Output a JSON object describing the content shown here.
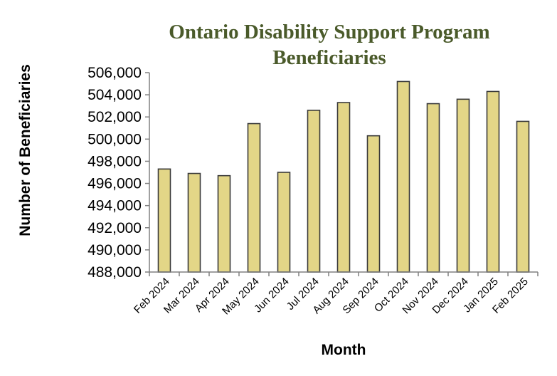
{
  "chart_data": {
    "type": "bar",
    "title_lines": [
      "Ontario Disability Support Program",
      "Beneficiaries"
    ],
    "xlabel": "Month",
    "ylabel": "Number of Beneficiaries",
    "ylim": [
      488000,
      506000
    ],
    "y_ticks": [
      "488,000",
      "490,000",
      "492,000",
      "494,000",
      "496,000",
      "498,000",
      "500,000",
      "502,000",
      "504,000",
      "506,000"
    ],
    "categories": [
      "Feb 2024",
      "Mar 2024",
      "Apr 2024",
      "May 2024",
      "Jun 2024",
      "Jul 2024",
      "Aug 2024",
      "Sep 2024",
      "Oct 2024",
      "Nov 2024",
      "Dec 2024",
      "Jan 2025",
      "Feb 2025"
    ],
    "values": [
      497300,
      496900,
      496700,
      501400,
      497000,
      502600,
      503300,
      500300,
      505200,
      503200,
      503600,
      504300,
      501600
    ],
    "grid": false,
    "legend": "none",
    "colors": {
      "bar_fill": "#e3d687",
      "bar_stroke": "#3a3a3a",
      "title": "#4a5a2a"
    }
  }
}
